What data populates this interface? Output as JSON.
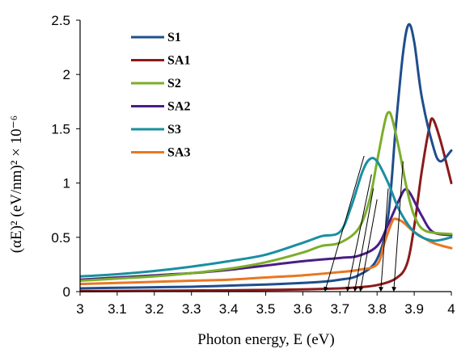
{
  "chart_data": {
    "type": "line",
    "title": "",
    "xlabel": "Photon energy, E (eV)",
    "ylabel": "(αE)² (eV/nm)² × 10⁻⁶",
    "xlim": [
      3,
      4
    ],
    "ylim": [
      0,
      2.5
    ],
    "x_ticks": [
      "3",
      "3.1",
      "3.2",
      "3.3",
      "3.4",
      "3.5",
      "3.6",
      "3.7",
      "3.8",
      "3.9",
      "4"
    ],
    "y_ticks": [
      "0",
      "0.5",
      "1",
      "1.5",
      "2",
      "2.5"
    ],
    "grid": false,
    "legend_position": "top-left",
    "series": [
      {
        "name": "S1",
        "color": "#1F4E8C",
        "points": [
          [
            3.0,
            0.03
          ],
          [
            3.1,
            0.035
          ],
          [
            3.2,
            0.04
          ],
          [
            3.3,
            0.045
          ],
          [
            3.4,
            0.055
          ],
          [
            3.5,
            0.065
          ],
          [
            3.6,
            0.08
          ],
          [
            3.65,
            0.09
          ],
          [
            3.7,
            0.11
          ],
          [
            3.75,
            0.15
          ],
          [
            3.8,
            0.3
          ],
          [
            3.83,
            0.7
          ],
          [
            3.85,
            1.5
          ],
          [
            3.87,
            2.2
          ],
          [
            3.885,
            2.46
          ],
          [
            3.9,
            2.3
          ],
          [
            3.92,
            1.8
          ],
          [
            3.95,
            1.35
          ],
          [
            3.97,
            1.2
          ],
          [
            4.0,
            1.3
          ]
        ]
      },
      {
        "name": "SA1",
        "color": "#8B1A1A",
        "points": [
          [
            3.0,
            0.005
          ],
          [
            3.2,
            0.008
          ],
          [
            3.4,
            0.012
          ],
          [
            3.5,
            0.016
          ],
          [
            3.6,
            0.02
          ],
          [
            3.7,
            0.03
          ],
          [
            3.75,
            0.04
          ],
          [
            3.8,
            0.06
          ],
          [
            3.85,
            0.12
          ],
          [
            3.88,
            0.25
          ],
          [
            3.9,
            0.6
          ],
          [
            3.92,
            1.1
          ],
          [
            3.94,
            1.5
          ],
          [
            3.95,
            1.59
          ],
          [
            3.97,
            1.4
          ],
          [
            4.0,
            1.0
          ]
        ]
      },
      {
        "name": "S2",
        "color": "#7BAE2A",
        "points": [
          [
            3.0,
            0.1
          ],
          [
            3.1,
            0.12
          ],
          [
            3.2,
            0.14
          ],
          [
            3.3,
            0.17
          ],
          [
            3.4,
            0.21
          ],
          [
            3.5,
            0.27
          ],
          [
            3.6,
            0.36
          ],
          [
            3.65,
            0.42
          ],
          [
            3.7,
            0.45
          ],
          [
            3.75,
            0.58
          ],
          [
            3.78,
            0.85
          ],
          [
            3.8,
            1.2
          ],
          [
            3.82,
            1.55
          ],
          [
            3.83,
            1.65
          ],
          [
            3.84,
            1.6
          ],
          [
            3.86,
            1.3
          ],
          [
            3.88,
            0.95
          ],
          [
            3.9,
            0.7
          ],
          [
            3.93,
            0.56
          ],
          [
            4.0,
            0.53
          ]
        ]
      },
      {
        "name": "SA2",
        "color": "#4B1E86",
        "points": [
          [
            3.0,
            0.11
          ],
          [
            3.1,
            0.13
          ],
          [
            3.2,
            0.15
          ],
          [
            3.3,
            0.17
          ],
          [
            3.4,
            0.2
          ],
          [
            3.5,
            0.24
          ],
          [
            3.6,
            0.28
          ],
          [
            3.7,
            0.31
          ],
          [
            3.75,
            0.33
          ],
          [
            3.8,
            0.42
          ],
          [
            3.83,
            0.62
          ],
          [
            3.86,
            0.85
          ],
          [
            3.875,
            0.94
          ],
          [
            3.89,
            0.9
          ],
          [
            3.92,
            0.7
          ],
          [
            3.95,
            0.55
          ],
          [
            4.0,
            0.52
          ]
        ]
      },
      {
        "name": "S3",
        "color": "#1A8FA0",
        "points": [
          [
            3.0,
            0.14
          ],
          [
            3.1,
            0.16
          ],
          [
            3.2,
            0.19
          ],
          [
            3.3,
            0.23
          ],
          [
            3.4,
            0.28
          ],
          [
            3.5,
            0.34
          ],
          [
            3.6,
            0.45
          ],
          [
            3.65,
            0.51
          ],
          [
            3.7,
            0.55
          ],
          [
            3.73,
            0.78
          ],
          [
            3.76,
            1.1
          ],
          [
            3.78,
            1.22
          ],
          [
            3.8,
            1.2
          ],
          [
            3.83,
            1.0
          ],
          [
            3.86,
            0.75
          ],
          [
            3.9,
            0.55
          ],
          [
            3.95,
            0.47
          ],
          [
            4.0,
            0.5
          ]
        ]
      },
      {
        "name": "SA3",
        "color": "#E87722",
        "points": [
          [
            3.0,
            0.07
          ],
          [
            3.1,
            0.08
          ],
          [
            3.2,
            0.09
          ],
          [
            3.3,
            0.1
          ],
          [
            3.4,
            0.11
          ],
          [
            3.5,
            0.13
          ],
          [
            3.6,
            0.15
          ],
          [
            3.7,
            0.18
          ],
          [
            3.75,
            0.2
          ],
          [
            3.8,
            0.25
          ],
          [
            3.82,
            0.45
          ],
          [
            3.84,
            0.64
          ],
          [
            3.85,
            0.67
          ],
          [
            3.87,
            0.64
          ],
          [
            3.9,
            0.55
          ],
          [
            3.95,
            0.45
          ],
          [
            4.0,
            0.4
          ]
        ]
      }
    ],
    "extrapolation_arrows": [
      {
        "from": [
          3.765,
          1.25
        ],
        "to": [
          3.66,
          0.0
        ]
      },
      {
        "from": [
          3.785,
          1.08
        ],
        "to": [
          3.72,
          0.0
        ]
      },
      {
        "from": [
          3.79,
          0.95
        ],
        "to": [
          3.74,
          0.0
        ]
      },
      {
        "from": [
          3.8,
          0.85
        ],
        "to": [
          3.755,
          0.0
        ]
      },
      {
        "from": [
          3.83,
          0.95
        ],
        "to": [
          3.81,
          0.0
        ]
      },
      {
        "from": [
          3.87,
          1.2
        ],
        "to": [
          3.845,
          0.0
        ]
      }
    ]
  }
}
